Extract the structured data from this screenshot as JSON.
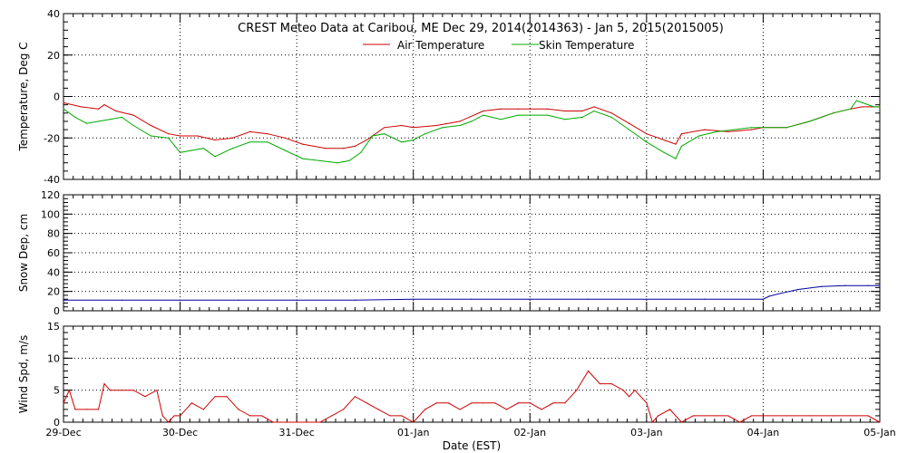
{
  "title": "CREST Meteo Data at Caribou, ME   Dec 29, 2014(2014363) - Jan  5, 2015(2015005)",
  "xlabel": "Date (EST)",
  "x_ticks": [
    "29-Dec",
    "30-Dec",
    "31-Dec",
    "01-Jan",
    "02-Jan",
    "03-Jan",
    "04-Jan",
    "05-Jan"
  ],
  "colors": {
    "air": "#cc0000",
    "skin": "#00aa00",
    "snow": "#000099",
    "wind": "#cc0000",
    "axis": "#000000",
    "grid": "#000000"
  },
  "chart_data": [
    {
      "type": "line",
      "ylabel": "Temperature, Deg C",
      "ylim": [
        -40,
        40
      ],
      "y_ticks": [
        "-40",
        "-20",
        "0",
        "20",
        "40"
      ],
      "xlim": [
        0,
        7
      ],
      "grid": true,
      "legend_position": "top-center",
      "series": [
        {
          "name": "Air Temperature",
          "x": [
            0,
            0.15,
            0.3,
            0.35,
            0.45,
            0.6,
            0.75,
            0.9,
            1.0,
            1.15,
            1.3,
            1.45,
            1.6,
            1.75,
            1.9,
            2.05,
            2.25,
            2.4,
            2.5,
            2.6,
            2.75,
            2.9,
            3.0,
            3.2,
            3.4,
            3.6,
            3.75,
            3.9,
            4.0,
            4.15,
            4.3,
            4.45,
            4.55,
            4.7,
            4.85,
            5.0,
            5.15,
            5.25,
            5.3,
            5.5,
            5.7,
            5.9,
            6.0,
            6.2,
            6.4,
            6.6,
            6.75,
            6.85,
            6.95,
            7.0
          ],
          "y": [
            -3,
            -5,
            -6,
            -4,
            -7,
            -9,
            -14,
            -18,
            -19,
            -19,
            -21,
            -20,
            -17,
            -18,
            -20,
            -23,
            -25,
            -25,
            -24,
            -21,
            -15,
            -14,
            -15,
            -14,
            -12,
            -7,
            -6,
            -6,
            -6,
            -6,
            -7,
            -7,
            -5,
            -8,
            -13,
            -18,
            -21,
            -23,
            -18,
            -16,
            -17,
            -16,
            -15,
            -15,
            -12,
            -8,
            -6,
            -5,
            -5,
            -5
          ]
        },
        {
          "name": "Skin Temperature",
          "x": [
            0,
            0.1,
            0.2,
            0.3,
            0.4,
            0.5,
            0.6,
            0.75,
            0.9,
            1.0,
            1.1,
            1.2,
            1.3,
            1.45,
            1.6,
            1.75,
            1.9,
            2.05,
            2.2,
            2.35,
            2.45,
            2.55,
            2.65,
            2.75,
            2.9,
            3.0,
            3.1,
            3.25,
            3.4,
            3.5,
            3.6,
            3.75,
            3.9,
            4.0,
            4.15,
            4.3,
            4.45,
            4.55,
            4.7,
            4.85,
            5.0,
            5.15,
            5.25,
            5.3,
            5.45,
            5.6,
            5.75,
            5.9,
            6.0,
            6.2,
            6.4,
            6.6,
            6.75,
            6.8,
            6.85,
            6.95,
            7.0
          ],
          "y": [
            -6,
            -10,
            -13,
            -12,
            -11,
            -10,
            -14,
            -19,
            -20,
            -27,
            -26,
            -25,
            -29,
            -25,
            -22,
            -22,
            -26,
            -30,
            -31,
            -32,
            -31,
            -27,
            -19,
            -18,
            -22,
            -21,
            -18,
            -15,
            -14,
            -12,
            -9,
            -11,
            -9,
            -9,
            -9,
            -11,
            -10,
            -7,
            -10,
            -16,
            -22,
            -27,
            -30,
            -24,
            -19,
            -17,
            -16,
            -15,
            -15,
            -15,
            -12,
            -8,
            -6,
            -2,
            -3,
            -5,
            -5
          ]
        }
      ]
    },
    {
      "type": "line",
      "ylabel": "Snow Dep, cm",
      "ylim": [
        0,
        120
      ],
      "y_ticks": [
        "0",
        "20",
        "40",
        "60",
        "80",
        "100",
        "120"
      ],
      "xlim": [
        0,
        7
      ],
      "grid": true,
      "series": [
        {
          "x": [
            0,
            0.5,
            1.0,
            1.5,
            2.0,
            2.5,
            3.0,
            3.5,
            4.0,
            4.5,
            5.0,
            5.5,
            6.0,
            6.05,
            6.15,
            6.3,
            6.5,
            6.7,
            6.9,
            7.0
          ],
          "y": [
            11,
            11,
            11,
            11,
            11,
            11,
            12,
            12,
            12,
            12,
            12,
            12,
            12,
            15,
            18,
            22,
            25,
            26,
            26,
            26
          ]
        }
      ]
    },
    {
      "type": "line",
      "ylabel": "Wind Spd, m/s",
      "ylim": [
        0,
        15
      ],
      "y_ticks": [
        "0",
        "5",
        "10",
        "15"
      ],
      "xlim": [
        0,
        7
      ],
      "grid": true,
      "series": [
        {
          "x": [
            0,
            0.05,
            0.1,
            0.2,
            0.3,
            0.35,
            0.4,
            0.5,
            0.6,
            0.7,
            0.8,
            0.85,
            0.9,
            0.95,
            1.0,
            1.1,
            1.2,
            1.3,
            1.4,
            1.5,
            1.6,
            1.7,
            1.8,
            1.9,
            2.0,
            2.1,
            2.2,
            2.3,
            2.4,
            2.5,
            2.6,
            2.7,
            2.8,
            2.9,
            3.0,
            3.1,
            3.2,
            3.3,
            3.4,
            3.5,
            3.6,
            3.7,
            3.8,
            3.9,
            4.0,
            4.1,
            4.2,
            4.3,
            4.4,
            4.5,
            4.6,
            4.7,
            4.8,
            4.85,
            4.9,
            5.0,
            5.05,
            5.1,
            5.2,
            5.3,
            5.4,
            5.5,
            5.6,
            5.7,
            5.8,
            5.9,
            6.0,
            6.2,
            6.4,
            6.6,
            6.8,
            6.9,
            7.0
          ],
          "y": [
            3,
            5,
            2,
            2,
            2,
            6,
            5,
            5,
            5,
            4,
            5,
            1,
            0,
            1,
            1,
            3,
            2,
            4,
            4,
            2,
            1,
            1,
            0,
            0,
            0,
            0,
            0,
            1,
            2,
            4,
            3,
            2,
            1,
            1,
            0,
            2,
            3,
            3,
            2,
            3,
            3,
            3,
            2,
            3,
            3,
            2,
            3,
            3,
            5,
            8,
            6,
            6,
            5,
            4,
            5,
            3,
            0,
            1,
            2,
            0,
            1,
            1,
            1,
            1,
            0,
            1,
            1,
            1,
            1,
            1,
            1,
            1,
            0
          ]
        }
      ]
    }
  ]
}
